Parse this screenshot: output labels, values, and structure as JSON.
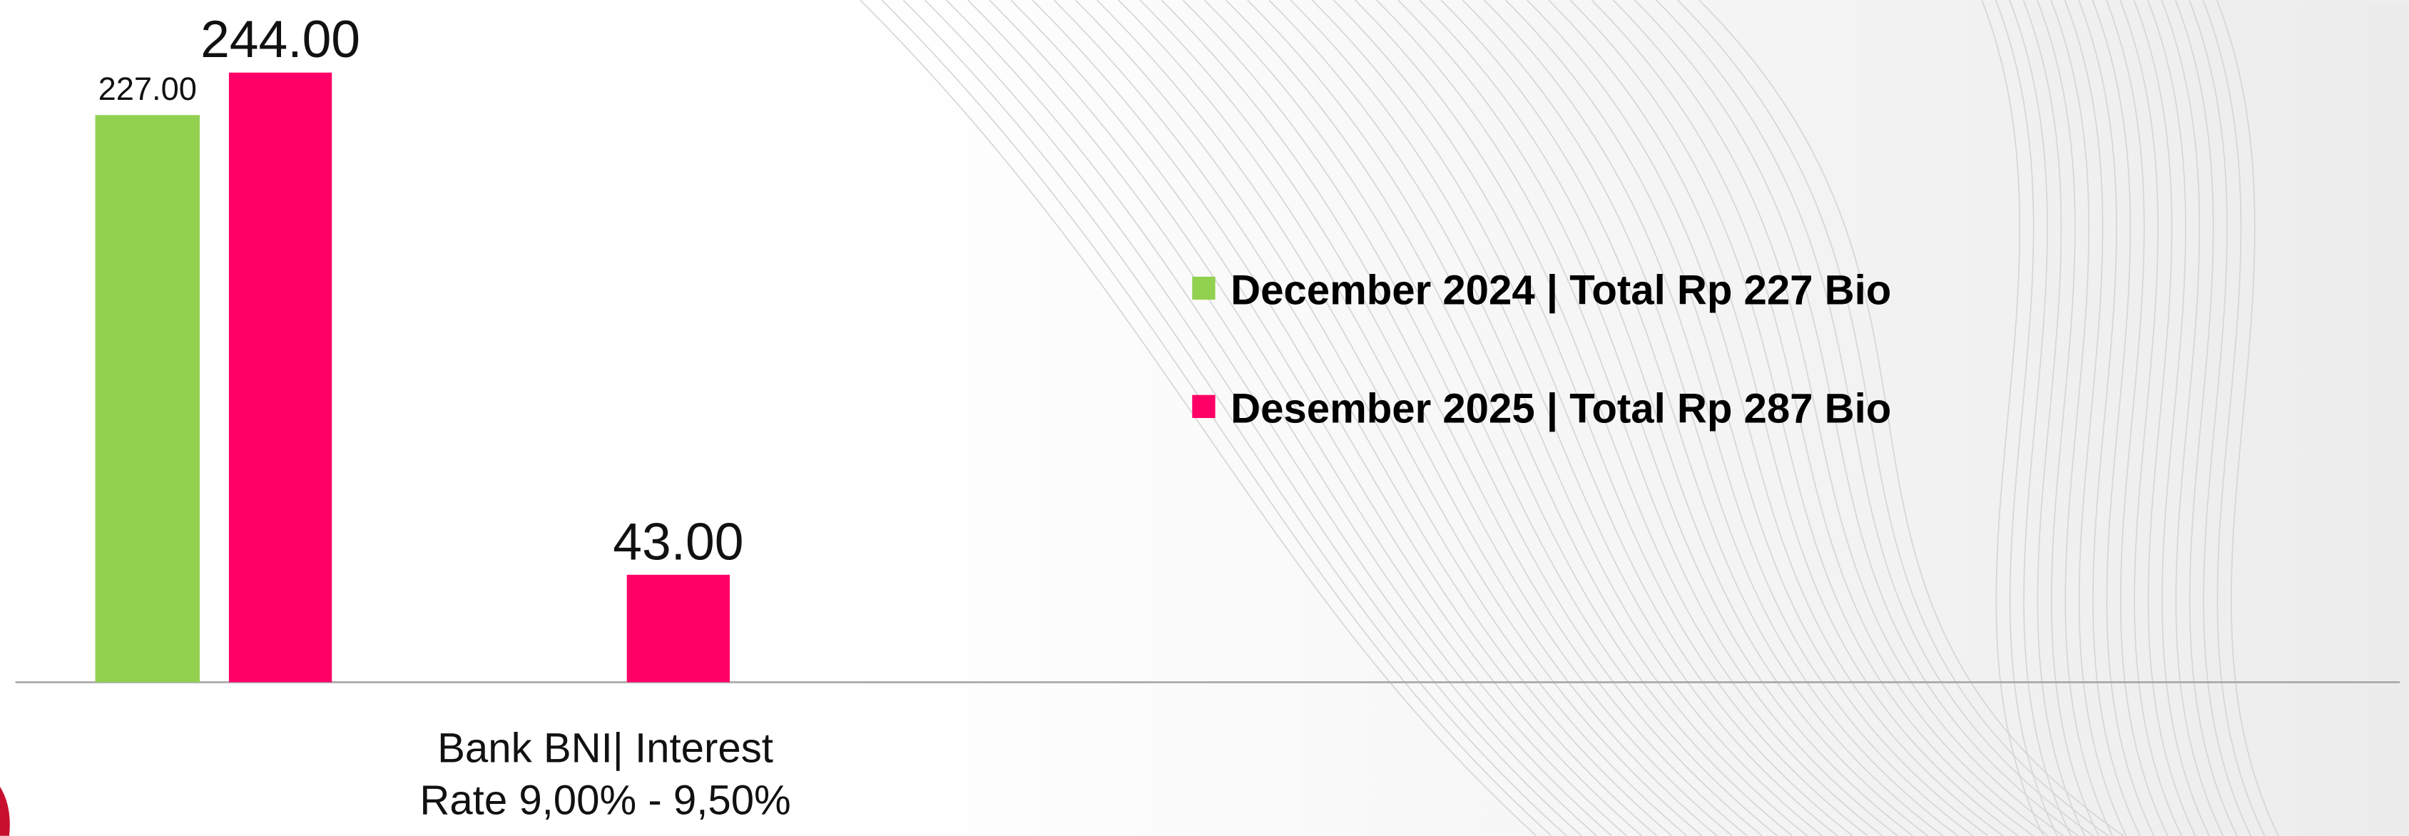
{
  "chart_data": {
    "type": "bar",
    "categories": [
      null,
      "Bank BNI| Interest Rate 9,00% - 9,50%"
    ],
    "series": [
      {
        "name": "December 2024 | Total Rp 227 Bio",
        "color": "#92d050",
        "values": [
          227,
          null
        ],
        "value_labels": [
          "227.00",
          null
        ]
      },
      {
        "name": "Desember 2025 | Total Rp 287 Bio",
        "color": "#ff0066",
        "values": [
          244,
          43
        ],
        "value_labels": [
          "244.00",
          "43.00"
        ]
      }
    ],
    "ylim": [
      0,
      273
    ]
  }
}
